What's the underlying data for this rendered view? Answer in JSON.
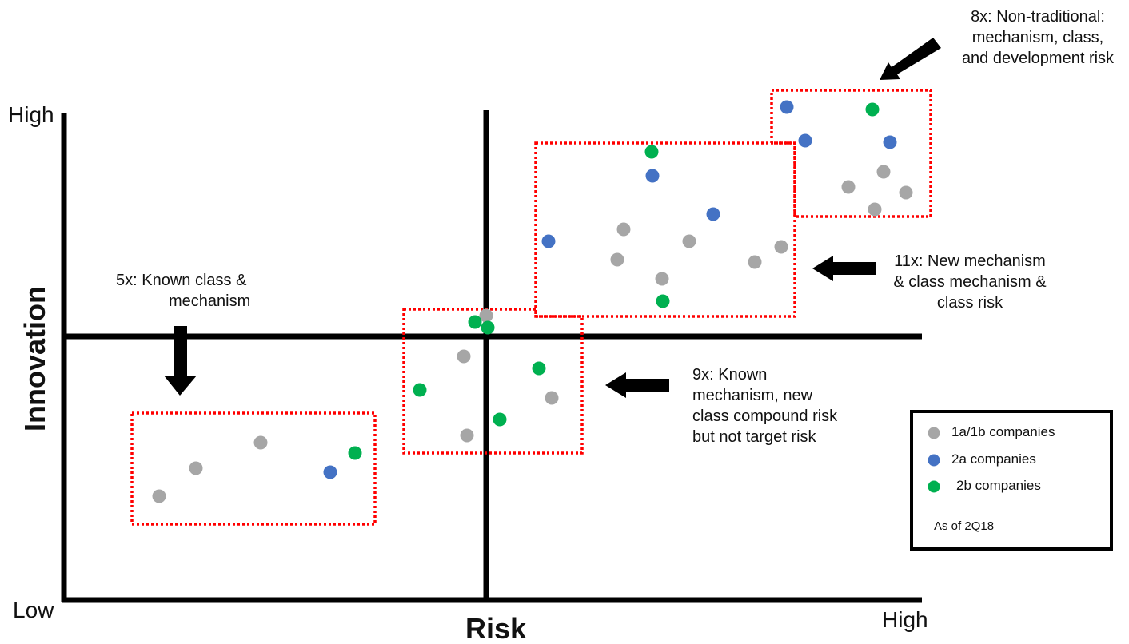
{
  "axes": {
    "y_high": "High",
    "y_title": "Innovation",
    "x_low": "Low",
    "x_title": "Risk",
    "x_high": "High"
  },
  "annotations": {
    "known_class": [
      "5x: Known class &",
      "mechanism"
    ],
    "known_mechanism": [
      "9x: Known",
      "mechanism, new",
      "class compound risk",
      "but not target risk"
    ],
    "new_mechanism": [
      "11x: New mechanism",
      "& class mechanism &",
      "class risk"
    ],
    "non_traditional": [
      "8x: Non-traditional:",
      "mechanism, class,",
      "and development risk"
    ]
  },
  "legend": {
    "items": [
      {
        "label": "1a/1b companies",
        "color": "#a6a6a6"
      },
      {
        "label": "2a companies",
        "color": "#4472c4"
      },
      {
        "label": "2b companies",
        "color": "#00b050"
      }
    ],
    "note": "As of 2Q18"
  },
  "colors": {
    "grey": "#a6a6a6",
    "blue": "#4472c4",
    "green": "#00b050",
    "box": "#ff0000",
    "axis": "#000000"
  },
  "groups": [
    {
      "name": "5x",
      "points": [
        [
          "grey"
        ],
        [
          "grey"
        ],
        [
          "grey"
        ],
        [
          "blue"
        ],
        [
          "green"
        ]
      ]
    },
    {
      "name": "9x",
      "points": [
        [
          "grey"
        ],
        [
          "green"
        ],
        [
          "green"
        ],
        [
          "grey"
        ],
        [
          "green"
        ],
        [
          "green"
        ],
        [
          "grey"
        ],
        [
          "green"
        ],
        [
          "grey"
        ]
      ]
    },
    {
      "name": "11x",
      "points": [
        [
          "green"
        ],
        [
          "blue"
        ],
        [
          "blue"
        ],
        [
          "blue"
        ],
        [
          "grey"
        ],
        [
          "grey"
        ],
        [
          "grey"
        ],
        [
          "grey"
        ],
        [
          "grey"
        ],
        [
          "grey"
        ],
        [
          "green"
        ]
      ]
    },
    {
      "name": "8x",
      "points": [
        [
          "blue"
        ],
        [
          "green"
        ],
        [
          "blue"
        ],
        [
          "blue"
        ],
        [
          "grey"
        ],
        [
          "grey"
        ],
        [
          "grey"
        ],
        [
          "grey"
        ]
      ]
    }
  ]
}
